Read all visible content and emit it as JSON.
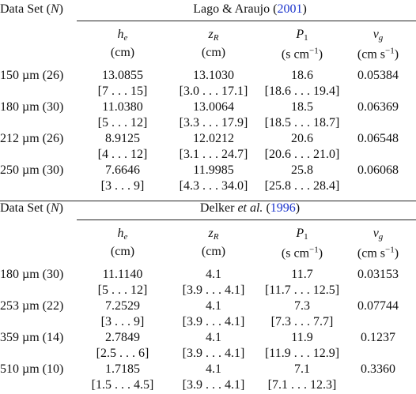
{
  "sections": [
    {
      "group_label": [
        {
          "text": "Data Set ("
        },
        {
          "text": "N",
          "style": "italic"
        },
        {
          "text": ")"
        }
      ],
      "title": [
        {
          "text": "Lago & Araujo ("
        },
        {
          "text": "2001",
          "style": "link"
        },
        {
          "text": ")"
        }
      ],
      "columns": [
        {
          "symbol": [
            {
              "text": "h",
              "style": "italic"
            },
            {
              "text": "e",
              "style": "sub-italic"
            }
          ],
          "unit": [
            {
              "text": "(cm)"
            }
          ]
        },
        {
          "symbol": [
            {
              "text": "z",
              "style": "italic"
            },
            {
              "text": "R",
              "style": "sub-italic"
            }
          ],
          "unit": [
            {
              "text": "(cm)"
            }
          ]
        },
        {
          "symbol": [
            {
              "text": "P",
              "style": "italic"
            },
            {
              "text": "1",
              "style": "sub"
            }
          ],
          "unit": [
            {
              "text": "(s cm"
            },
            {
              "text": "−1",
              "style": "sup"
            },
            {
              "text": ")"
            }
          ]
        },
        {
          "symbol": [
            {
              "text": "v",
              "style": "italic"
            },
            {
              "text": "g",
              "style": "sub-italic"
            }
          ],
          "unit": [
            {
              "text": "(cm s"
            },
            {
              "text": "−1",
              "style": "sup"
            },
            {
              "text": ")"
            }
          ]
        }
      ],
      "rows": [
        {
          "label": "150 µm (26)",
          "cells": [
            {
              "value": "13.0855",
              "range": "[7 . . . 15]"
            },
            {
              "value": "13.1030",
              "range": "[3.0 . . . 17.1]"
            },
            {
              "value": "18.6",
              "range": "[18.6 . . . 19.4]"
            },
            {
              "value": "0.05384"
            }
          ]
        },
        {
          "label": "180 µm (30)",
          "cells": [
            {
              "value": "11.0380",
              "range": "[5 . . . 12]"
            },
            {
              "value": "13.0064",
              "range": "[3.3 . . . 17.9]"
            },
            {
              "value": "18.5",
              "range": "[18.5 . . . 18.7]"
            },
            {
              "value": "0.06369"
            }
          ]
        },
        {
          "label": "212 µm (26)",
          "cells": [
            {
              "value": "8.9125",
              "range": "[4 . . . 12]"
            },
            {
              "value": "12.0212",
              "range": "[3.1 . . . 24.7]"
            },
            {
              "value": "20.6",
              "range": "[20.6 . . . 21.0]"
            },
            {
              "value": "0.06548"
            }
          ]
        },
        {
          "label": "250 µm (30)",
          "cells": [
            {
              "value": "7.6646",
              "range": "[3 . . . 9]"
            },
            {
              "value": "11.9985",
              "range": "[4.3 . . . 34.0]"
            },
            {
              "value": "25.8",
              "range": "[25.8 . . . 28.4]"
            },
            {
              "value": "0.06068"
            }
          ]
        }
      ]
    },
    {
      "group_label": [
        {
          "text": "Data Set ("
        },
        {
          "text": "N",
          "style": "italic"
        },
        {
          "text": ")"
        }
      ],
      "title": [
        {
          "text": "Delker "
        },
        {
          "text": "et al.",
          "style": "italic"
        },
        {
          "text": " ("
        },
        {
          "text": "1996",
          "style": "link"
        },
        {
          "text": ")"
        }
      ],
      "columns": [
        {
          "symbol": [
            {
              "text": "h",
              "style": "italic"
            },
            {
              "text": "e",
              "style": "sub-italic"
            }
          ],
          "unit": [
            {
              "text": "(cm)"
            }
          ]
        },
        {
          "symbol": [
            {
              "text": "z",
              "style": "italic"
            },
            {
              "text": "R",
              "style": "sub-italic"
            }
          ],
          "unit": [
            {
              "text": "(cm)"
            }
          ]
        },
        {
          "symbol": [
            {
              "text": "P",
              "style": "italic"
            },
            {
              "text": "1",
              "style": "sub"
            }
          ],
          "unit": [
            {
              "text": "(s cm"
            },
            {
              "text": "−1",
              "style": "sup"
            },
            {
              "text": ")"
            }
          ]
        },
        {
          "symbol": [
            {
              "text": "v",
              "style": "italic"
            },
            {
              "text": "g",
              "style": "sub-italic"
            }
          ],
          "unit": [
            {
              "text": "(cm s"
            },
            {
              "text": "−1",
              "style": "sup"
            },
            {
              "text": ")"
            }
          ]
        }
      ],
      "rows": [
        {
          "label": "180 µm (30)",
          "cells": [
            {
              "value": "11.1140",
              "range": "[5 . . . 12]"
            },
            {
              "value": "4.1",
              "range": "[3.9 . . . 4.1]"
            },
            {
              "value": "11.7",
              "range": "[11.7 . . . 12.5]"
            },
            {
              "value": "0.03153"
            }
          ]
        },
        {
          "label": "253 µm (22)",
          "cells": [
            {
              "value": "7.2529",
              "range": "[3 . . . 9]"
            },
            {
              "value": "4.1",
              "range": "[3.9 . . . 4.1]"
            },
            {
              "value": "7.3",
              "range": "[7.3 . . . 7.7]"
            },
            {
              "value": "0.07744"
            }
          ]
        },
        {
          "label": "359 µm (14)",
          "cells": [
            {
              "value": "2.7849",
              "range": "[2.5 . . . 6]"
            },
            {
              "value": "4.1",
              "range": "[3.9 . . . 4.1]"
            },
            {
              "value": "11.9",
              "range": "[11.9 . . . 12.9]"
            },
            {
              "value": "0.1237"
            }
          ]
        },
        {
          "label": "510 µm (10)",
          "cells": [
            {
              "value": "1.7185",
              "range": "[1.5 . . . 4.5]"
            },
            {
              "value": "4.1",
              "range": "[3.9 . . . 4.1]"
            },
            {
              "value": "7.1",
              "range": "[7.1 . . . 12.3]"
            },
            {
              "value": "0.3360"
            }
          ]
        }
      ]
    }
  ]
}
